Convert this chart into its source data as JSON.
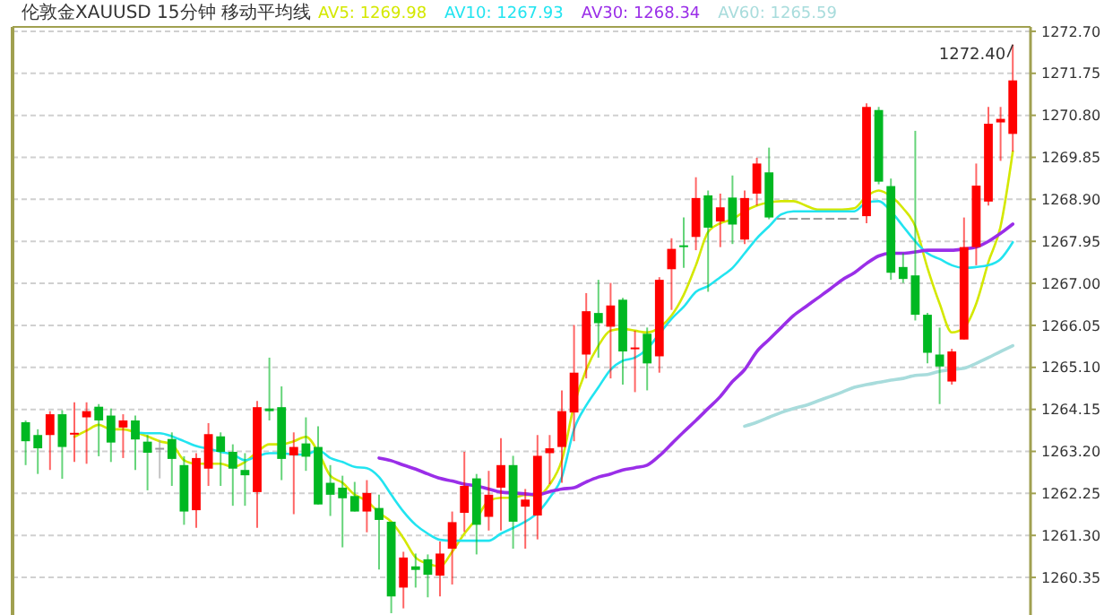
{
  "chart_data": {
    "type": "candlestick",
    "title": "伦敦金XAUUSD 15分钟 移动平均线",
    "categories": [
      null,
      null,
      null,
      null,
      null,
      null,
      null,
      null,
      null,
      null,
      null,
      null,
      null,
      null,
      null,
      null,
      null,
      null,
      null,
      null,
      null,
      null,
      null,
      null,
      null,
      null,
      null,
      null,
      null,
      null,
      null,
      null,
      null,
      null,
      null,
      null,
      null,
      null,
      null,
      null,
      null,
      null,
      null,
      null,
      null,
      null,
      null,
      null,
      null,
      null,
      null,
      null,
      null,
      null,
      null,
      null,
      null,
      null,
      null,
      null,
      null,
      null,
      null,
      null,
      null,
      null,
      null,
      null,
      null,
      null,
      null,
      null,
      null,
      null,
      null,
      null,
      null,
      null,
      null,
      null,
      null,
      null
    ],
    "ohlc": [
      [
        1263.86,
        1263.9,
        1262.89,
        1263.43
      ],
      [
        1263.57,
        1263.7,
        1262.69,
        1263.27
      ],
      [
        1263.57,
        1264.11,
        1262.78,
        1264.04
      ],
      [
        1264.04,
        1264.13,
        1262.58,
        1263.3
      ],
      [
        1263.59,
        1264.31,
        1262.96,
        1263.62
      ],
      [
        1263.97,
        1264.31,
        1262.92,
        1264.11
      ],
      [
        1264.21,
        1264.27,
        1263.09,
        1263.9
      ],
      [
        1264.01,
        1264.17,
        1262.96,
        1263.4
      ],
      [
        1263.74,
        1264.04,
        1263.05,
        1263.9
      ],
      [
        1263.9,
        1264.01,
        1262.78,
        1263.47
      ],
      [
        1263.42,
        1263.57,
        1262.32,
        1263.17
      ],
      [
        1263.28,
        1263.46,
        1262.59,
        1263.28
      ],
      [
        1263.48,
        1263.63,
        1262.42,
        1263.03
      ],
      [
        1262.89,
        1263.09,
        1261.54,
        1261.84
      ],
      [
        1261.87,
        1263.16,
        1261.47,
        1263.05
      ],
      [
        1262.81,
        1263.84,
        1262.42,
        1263.59
      ],
      [
        1263.54,
        1263.63,
        1262.42,
        1263.19
      ],
      [
        1263.19,
        1263.36,
        1261.97,
        1262.81
      ],
      [
        1262.78,
        1263.16,
        1261.97,
        1262.66
      ],
      [
        1262.28,
        1264.34,
        1261.47,
        1264.2
      ],
      [
        1264.17,
        1265.32,
        1263.9,
        1264.11
      ],
      [
        1264.2,
        1264.67,
        1262.55,
        1263.03
      ],
      [
        1263.11,
        1263.63,
        1261.78,
        1263.3
      ],
      [
        1263.38,
        1263.97,
        1262.76,
        1263.08
      ],
      [
        1263.3,
        1263.77,
        1262.0,
        1262.0
      ],
      [
        1262.49,
        1262.89,
        1261.74,
        1262.22
      ],
      [
        1262.38,
        1262.65,
        1261.03,
        1262.14
      ],
      [
        1262.19,
        1262.51,
        1261.84,
        1261.84
      ],
      [
        1261.84,
        1262.55,
        1261.37,
        1262.26
      ],
      [
        1261.92,
        1262.22,
        1260.53,
        1261.65
      ],
      [
        1261.61,
        1261.61,
        1259.54,
        1259.92
      ],
      [
        1260.12,
        1260.93,
        1259.65,
        1260.8
      ],
      [
        1260.6,
        1260.89,
        1260.12,
        1260.52
      ],
      [
        1260.76,
        1260.87,
        1259.9,
        1260.41
      ],
      [
        1260.39,
        1261.16,
        1259.92,
        1260.89
      ],
      [
        1261.0,
        1261.84,
        1260.19,
        1261.6
      ],
      [
        1261.81,
        1263.19,
        1261.38,
        1262.42
      ],
      [
        1262.59,
        1262.69,
        1260.87,
        1261.54
      ],
      [
        1261.72,
        1262.76,
        1261.41,
        1262.22
      ],
      [
        1262.38,
        1263.5,
        1261.41,
        1262.89
      ],
      [
        1262.89,
        1263.1,
        1261.0,
        1261.61
      ],
      [
        1261.95,
        1262.35,
        1261.0,
        1262.11
      ],
      [
        1261.75,
        1263.57,
        1261.21,
        1263.1
      ],
      [
        1263.16,
        1263.57,
        1262.46,
        1263.27
      ],
      [
        1263.3,
        1264.58,
        1262.49,
        1264.11
      ],
      [
        1264.08,
        1266.06,
        1263.43,
        1264.98
      ],
      [
        1265.39,
        1266.78,
        1264.85,
        1266.37
      ],
      [
        1266.33,
        1267.08,
        1265.32,
        1266.1
      ],
      [
        1266.02,
        1267.01,
        1264.85,
        1266.5
      ],
      [
        1266.63,
        1266.67,
        1264.71,
        1265.46
      ],
      [
        1265.51,
        1265.93,
        1264.54,
        1265.55
      ],
      [
        1265.86,
        1266.0,
        1264.58,
        1265.19
      ],
      [
        1265.35,
        1267.14,
        1264.98,
        1267.08
      ],
      [
        1267.32,
        1268.02,
        1266.4,
        1267.78
      ],
      [
        1267.86,
        1268.49,
        1267.35,
        1267.86
      ],
      [
        1268.05,
        1269.4,
        1267.75,
        1268.93
      ],
      [
        1268.99,
        1269.1,
        1266.81,
        1268.26
      ],
      [
        1268.4,
        1269.03,
        1267.82,
        1268.72
      ],
      [
        1268.94,
        1269.44,
        1267.89,
        1268.33
      ],
      [
        1267.99,
        1269.1,
        1267.89,
        1268.93
      ],
      [
        1269.03,
        1269.84,
        1268.76,
        1269.71
      ],
      [
        1269.51,
        1270.07,
        1268.45,
        1268.49
      ],
      [
        1268.48,
        1268.48,
        1268.48,
        1268.48
      ],
      [
        1268.48,
        1268.48,
        1268.48,
        1268.48
      ],
      [
        1268.48,
        1268.48,
        1268.48,
        1268.48
      ],
      [
        1268.48,
        1268.48,
        1268.48,
        1268.48
      ],
      [
        1268.48,
        1268.48,
        1268.48,
        1268.48
      ],
      [
        1268.48,
        1268.48,
        1268.48,
        1268.48
      ],
      [
        1268.48,
        1268.48,
        1268.48,
        1268.48
      ],
      [
        1268.52,
        1271.07,
        1268.36,
        1270.99
      ],
      [
        1270.92,
        1270.99,
        1269.24,
        1269.3
      ],
      [
        1269.2,
        1269.37,
        1267.08,
        1267.24
      ],
      [
        1267.37,
        1267.68,
        1267.01,
        1267.1
      ],
      [
        1267.18,
        1270.45,
        1266.16,
        1266.29
      ],
      [
        1266.29,
        1266.33,
        1265.19,
        1265.43
      ],
      [
        1265.39,
        1266.0,
        1264.27,
        1265.12
      ],
      [
        1264.78,
        1265.52,
        1264.71,
        1265.46
      ],
      [
        1265.73,
        1268.49,
        1265.73,
        1267.82
      ],
      [
        1267.82,
        1269.71,
        1267.41,
        1269.21
      ],
      [
        1268.85,
        1270.99,
        1268.76,
        1270.61
      ],
      [
        1270.64,
        1270.99,
        1269.77,
        1270.72
      ],
      [
        1270.38,
        1272.4,
        1269.98,
        1271.59
      ]
    ],
    "colors": [
      "#00b822",
      "#00b822",
      "#ff0000",
      "#00b822",
      "#ff0000",
      "#ff0000",
      "#00b822",
      "#00b822",
      "#ff0000",
      "#00b822",
      "#00b822",
      "#9a9a9a",
      "#00b822",
      "#00b822",
      "#ff0000",
      "#ff0000",
      "#00b822",
      "#00b822",
      "#00b822",
      "#ff0000",
      "#00b822",
      "#00b822",
      "#ff0000",
      "#00b822",
      "#00b822",
      "#00b822",
      "#00b822",
      "#00b822",
      "#ff0000",
      "#00b822",
      "#00b822",
      "#ff0000",
      "#00b822",
      "#00b822",
      "#ff0000",
      "#ff0000",
      "#ff0000",
      "#00b822",
      "#ff0000",
      "#ff0000",
      "#00b822",
      "#ff0000",
      "#ff0000",
      "#ff0000",
      "#ff0000",
      "#ff0000",
      "#ff0000",
      "#00b822",
      "#ff0000",
      "#00b822",
      "#ff0000",
      "#00b822",
      "#ff0000",
      "#ff0000",
      "#00b822",
      "#ff0000",
      "#00b822",
      "#ff0000",
      "#00b822",
      "#ff0000",
      "#ff0000",
      "#00b822",
      "#9a9a9a",
      "#9a9a9a",
      "#9a9a9a",
      "#9a9a9a",
      "#9a9a9a",
      "#9a9a9a",
      "#9a9a9a",
      "#ff0000",
      "#00b822",
      "#00b822",
      "#00b822",
      "#00b822",
      "#00b822",
      "#00b822",
      "#ff0000",
      "#ff0000",
      "#ff0000",
      "#ff0000",
      "#ff0000",
      "#ff0000"
    ],
    "series": [
      {
        "type": "line",
        "name": "AV5: 1269.98",
        "color": "#d4e800",
        "values": [
          null,
          null,
          null,
          null,
          1263.53,
          1263.67,
          1263.8,
          1263.7,
          1263.7,
          1263.63,
          1263.54,
          1263.43,
          1263.36,
          1263.0,
          1262.92,
          1262.92,
          1262.92,
          1262.85,
          1262.96,
          1263.19,
          1263.36,
          1263.36,
          1263.43,
          1263.53,
          1263.19,
          1262.65,
          1262.49,
          1262.22,
          1262.08,
          1261.81,
          1261.61,
          1261.24,
          1260.8,
          1260.66,
          1260.6,
          1260.93,
          1261.34,
          1261.68,
          1262.08,
          1262.15,
          1262.15,
          1262.22,
          1262.19,
          1262.45,
          1263.0,
          1264.24,
          1265.05,
          1265.59,
          1265.93,
          1265.97,
          1265.93,
          1265.89,
          1266.0,
          1266.27,
          1266.74,
          1267.41,
          1268.16,
          1268.36,
          1268.45,
          1268.63,
          1268.76,
          1268.83,
          1268.86,
          1268.86,
          1268.76,
          1268.67,
          1268.67,
          1268.67,
          1268.7,
          1268.97,
          1269.1,
          1268.97,
          1268.7,
          1268.29,
          1267.35,
          1266.54,
          1265.89,
          1266.0,
          1266.54,
          1267.48,
          1268.29,
          1269.98
        ]
      },
      {
        "type": "line",
        "name": "AV10: 1267.93",
        "color": "#22e4f0",
        "values": [
          null,
          null,
          null,
          null,
          null,
          null,
          null,
          null,
          null,
          1263.63,
          1263.61,
          1263.61,
          1263.54,
          1263.43,
          1263.32,
          1263.26,
          1263.19,
          1263.13,
          1263.0,
          1263.09,
          1263.16,
          1263.16,
          1263.13,
          1263.13,
          1263.23,
          1263.05,
          1262.96,
          1262.85,
          1262.82,
          1262.62,
          1262.22,
          1261.84,
          1261.54,
          1261.34,
          1261.2,
          1261.18,
          1261.18,
          1261.18,
          1261.18,
          1261.34,
          1261.47,
          1261.61,
          1261.81,
          1262.15,
          1262.62,
          1263.7,
          1264.24,
          1264.65,
          1265.05,
          1265.25,
          1265.32,
          1265.52,
          1265.86,
          1266.2,
          1266.47,
          1266.81,
          1266.94,
          1267.14,
          1267.35,
          1267.68,
          1268.02,
          1268.29,
          1268.56,
          1268.63,
          1268.63,
          1268.63,
          1268.63,
          1268.63,
          1268.63,
          1268.83,
          1268.86,
          1268.63,
          1268.29,
          1267.95,
          1267.68,
          1267.55,
          1267.41,
          1267.35,
          1267.37,
          1267.41,
          1267.55,
          1267.93
        ]
      },
      {
        "type": "line",
        "name": "AV30: 1268.34",
        "color": "#9a2ee8",
        "values": [
          null,
          null,
          null,
          null,
          null,
          null,
          null,
          null,
          null,
          null,
          null,
          null,
          null,
          null,
          null,
          null,
          null,
          null,
          null,
          null,
          null,
          null,
          null,
          null,
          null,
          null,
          null,
          null,
          null,
          1263.05,
          1262.99,
          1262.89,
          1262.8,
          1262.69,
          1262.59,
          1262.53,
          1262.46,
          1262.42,
          1262.35,
          1262.28,
          1262.26,
          1262.24,
          1262.22,
          1262.29,
          1262.35,
          1262.38,
          1262.51,
          1262.62,
          1262.69,
          1262.78,
          1262.83,
          1262.89,
          1263.1,
          1263.37,
          1263.64,
          1263.9,
          1264.17,
          1264.44,
          1264.78,
          1265.05,
          1265.46,
          1265.73,
          1266.0,
          1266.27,
          1266.47,
          1266.67,
          1266.87,
          1267.08,
          1267.24,
          1267.45,
          1267.62,
          1267.68,
          1267.68,
          1267.71,
          1267.75,
          1267.75,
          1267.75,
          1267.78,
          1267.82,
          1267.95,
          1268.13,
          1268.34
        ]
      },
      {
        "type": "line",
        "name": "AV60: 1265.59",
        "color": "#a8dcdc",
        "values": [
          null,
          null,
          null,
          null,
          null,
          null,
          null,
          null,
          null,
          null,
          null,
          null,
          null,
          null,
          null,
          null,
          null,
          null,
          null,
          null,
          null,
          null,
          null,
          null,
          null,
          null,
          null,
          null,
          null,
          null,
          null,
          null,
          null,
          null,
          null,
          null,
          null,
          null,
          null,
          null,
          null,
          null,
          null,
          null,
          null,
          null,
          null,
          null,
          null,
          null,
          null,
          null,
          null,
          null,
          null,
          null,
          null,
          null,
          null,
          1263.77,
          1263.86,
          1263.97,
          1264.08,
          1264.17,
          1264.24,
          1264.34,
          1264.44,
          1264.54,
          1264.65,
          1264.71,
          1264.76,
          1264.81,
          1264.85,
          1264.92,
          1264.94,
          1265.01,
          1265.05,
          1265.08,
          1265.19,
          1265.32,
          1265.46,
          1265.59
        ]
      }
    ],
    "ylim": [
      1259.5,
      1272.8
    ],
    "yticks": [
      {
        "value": 1272.7,
        "label": "1272.70"
      },
      1271.75,
      {
        "value": 1270.8,
        "label": "1270.80"
      },
      1269.85,
      {
        "value": 1268.9,
        "label": "1268.90"
      },
      1267.95,
      {
        "value": 1267,
        "label": "1267.00"
      },
      1266.05,
      {
        "value": 1265.1,
        "label": "1265.10"
      },
      1264.15,
      {
        "value": 1263.2,
        "label": "1263.20"
      },
      1262.25,
      {
        "value": 1261.3,
        "label": "1261.30"
      },
      1260.35
    ],
    "annotations": [
      "1272.40"
    ],
    "grid": "y",
    "legend": "top",
    "tick_labels": "y"
  }
}
